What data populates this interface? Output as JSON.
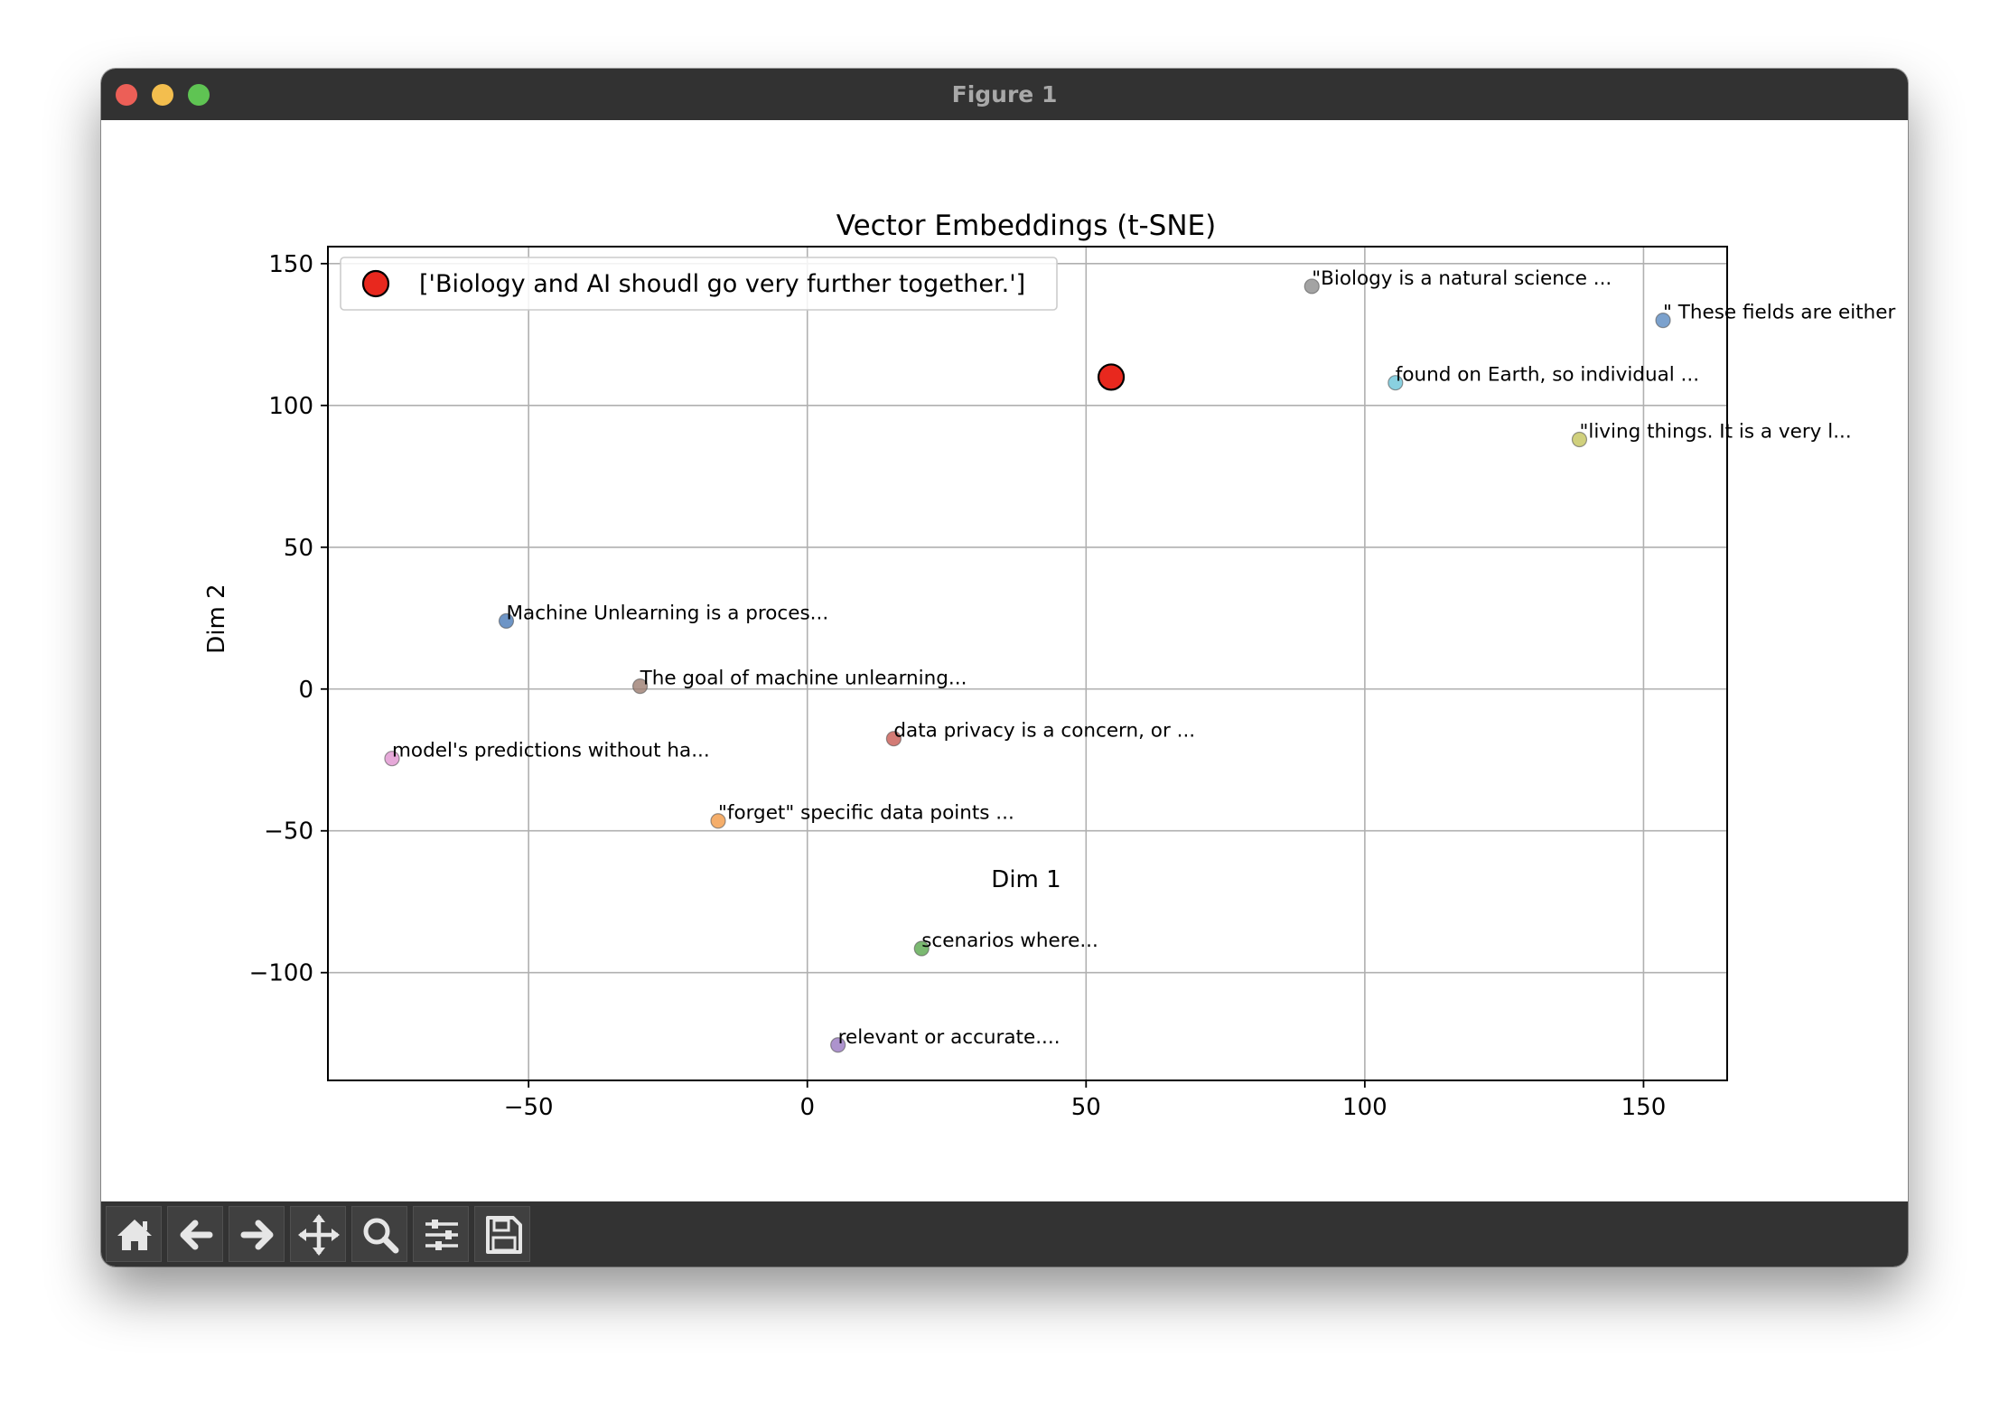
{
  "window": {
    "title": "Figure 1"
  },
  "toolbar": {
    "buttons": [
      {
        "name": "home-icon",
        "label": "Home"
      },
      {
        "name": "back-arrow-icon",
        "label": "Back"
      },
      {
        "name": "forward-arrow-icon",
        "label": "Forward"
      },
      {
        "name": "pan-icon",
        "label": "Pan"
      },
      {
        "name": "zoom-icon",
        "label": "Zoom"
      },
      {
        "name": "subplots-icon",
        "label": "Configure subplots"
      },
      {
        "name": "save-icon",
        "label": "Save"
      }
    ]
  },
  "chart_data": {
    "type": "scatter",
    "title": "Vector Embeddings (t-SNE)",
    "xlabel": "Dim 1",
    "ylabel": "Dim 2",
    "xlim": [
      -86,
      165
    ],
    "ylim": [
      -138,
      156
    ],
    "xticks": [
      -50,
      0,
      50,
      100,
      150
    ],
    "yticks": [
      -100,
      -50,
      0,
      50,
      100,
      150
    ],
    "xtick_labels": [
      "−50",
      "0",
      "50",
      "100",
      "150"
    ],
    "ytick_labels": [
      "−100",
      "−50",
      "0",
      "50",
      "100",
      "150"
    ],
    "grid": true,
    "legend_position": "top-left",
    "query": {
      "label": "['Biology and AI shoudl go very further together.']",
      "x": 54.5,
      "y": 110,
      "color": "#e8281e"
    },
    "points": [
      {
        "x": 90.5,
        "y": 142,
        "label": "\"Biology is a natural science ...",
        "color": "#8c8c8c"
      },
      {
        "x": 153.5,
        "y": 130,
        "label": "\" These fields are either",
        "color": "#5a8ac0"
      },
      {
        "x": 105.5,
        "y": 108,
        "label": "found on Earth, so individual ...",
        "color": "#6cc4d8"
      },
      {
        "x": 138.5,
        "y": 88,
        "label": "\"living things. It is a very l...",
        "color": "#c4c45c"
      },
      {
        "x": -54,
        "y": 24,
        "label": "Machine Unlearning is a proces...",
        "color": "#4a7ab8"
      },
      {
        "x": -30,
        "y": 1,
        "label": "The goal of machine unlearning...",
        "color": "#9c7d70"
      },
      {
        "x": 15.5,
        "y": -17.5,
        "label": "data privacy is a concern, or ...",
        "color": "#c85a52"
      },
      {
        "x": -74.5,
        "y": -24.5,
        "label": "model's predictions without ha...",
        "color": "#e094d0"
      },
      {
        "x": -16,
        "y": -46.5,
        "label": "\"forget\" specific data points ...",
        "color": "#f29a46"
      },
      {
        "x": 20.5,
        "y": -91.5,
        "label": "scenarios where...",
        "color": "#5aa84e"
      },
      {
        "x": 5.5,
        "y": -125.5,
        "label": "relevant or accurate....",
        "color": "#9878c0"
      }
    ]
  }
}
